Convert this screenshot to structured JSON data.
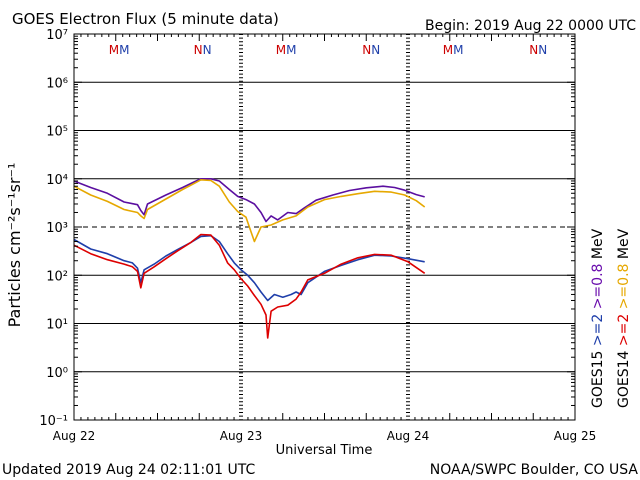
{
  "header": {
    "title": "GOES Electron Flux (5 minute data)",
    "begin": "Begin: 2019 Aug 22 0000 UTC"
  },
  "footer": {
    "updated": "Updated 2019 Aug 24 02:11:01 UTC",
    "credit": "NOAA/SWPC Boulder, CO USA"
  },
  "chart_data": {
    "type": "line",
    "title": "GOES Electron Flux (5 minute data)",
    "xlabel": "Universal Time",
    "ylabel": "Particles cm⁻²s⁻¹sr⁻¹",
    "yscale": "log",
    "ylim_exp": [
      -1,
      7
    ],
    "ytick_exps": [
      -1,
      0,
      1,
      2,
      3,
      4,
      5,
      6,
      7
    ],
    "x_unit": "days since 2019 Aug 22 0000 UTC",
    "xlim": [
      0,
      3
    ],
    "xticks": [
      {
        "x": 0,
        "label": "Aug 22"
      },
      {
        "x": 1,
        "label": "Aug 23"
      },
      {
        "x": 2,
        "label": "Aug 24"
      },
      {
        "x": 3,
        "label": "Aug 25"
      }
    ],
    "threshold": {
      "value": 1000,
      "style": "dashed"
    },
    "top_markers": [
      {
        "x": 0.27,
        "letters": [
          {
            "text": "M",
            "color": "#cc0000"
          },
          {
            "text": "M",
            "color": "#1f3faa"
          }
        ]
      },
      {
        "x": 0.77,
        "letters": [
          {
            "text": "N",
            "color": "#cc0000"
          },
          {
            "text": "N",
            "color": "#1f3faa"
          }
        ]
      },
      {
        "x": 1.27,
        "letters": [
          {
            "text": "M",
            "color": "#cc0000"
          },
          {
            "text": "M",
            "color": "#1f3faa"
          }
        ]
      },
      {
        "x": 1.78,
        "letters": [
          {
            "text": "N",
            "color": "#cc0000"
          },
          {
            "text": "N",
            "color": "#1f3faa"
          }
        ]
      },
      {
        "x": 2.27,
        "letters": [
          {
            "text": "M",
            "color": "#cc0000"
          },
          {
            "text": "M",
            "color": "#1f3faa"
          }
        ]
      },
      {
        "x": 2.78,
        "letters": [
          {
            "text": "N",
            "color": "#cc0000"
          },
          {
            "text": "N",
            "color": "#1f3faa"
          }
        ]
      }
    ],
    "legend": {
      "placement": "right",
      "columns": [
        {
          "satellite": "GOES15",
          "entries": [
            {
              "text": ">=2",
              "color": "#1f3faa"
            },
            {
              "text": ">=0.8",
              "color": "#6a0dad"
            }
          ],
          "unit": "MeV"
        },
        {
          "satellite": "GOES14",
          "entries": [
            {
              "text": ">=2",
              "color": "#dd0000"
            },
            {
              "text": ">=0.8",
              "color": "#e6a800"
            }
          ],
          "unit": "MeV"
        }
      ]
    },
    "series": [
      {
        "name": "GOES15 >=0.8 MeV",
        "color": "#5b0fa0",
        "points": [
          [
            0,
            9000
          ],
          [
            0.1,
            6600
          ],
          [
            0.2,
            5000
          ],
          [
            0.3,
            3300
          ],
          [
            0.38,
            2900
          ],
          [
            0.4,
            2200
          ],
          [
            0.42,
            1800
          ],
          [
            0.44,
            3000
          ],
          [
            0.55,
            4600
          ],
          [
            0.65,
            6600
          ],
          [
            0.72,
            8600
          ],
          [
            0.76,
            10000
          ],
          [
            0.82,
            10000
          ],
          [
            0.87,
            9000
          ],
          [
            0.93,
            6000
          ],
          [
            0.98,
            4300
          ],
          [
            1.03,
            3700
          ],
          [
            1.08,
            3000
          ],
          [
            1.12,
            2000
          ],
          [
            1.15,
            1300
          ],
          [
            1.18,
            1700
          ],
          [
            1.22,
            1400
          ],
          [
            1.28,
            2000
          ],
          [
            1.33,
            1900
          ],
          [
            1.38,
            2500
          ],
          [
            1.45,
            3600
          ],
          [
            1.55,
            4600
          ],
          [
            1.65,
            5700
          ],
          [
            1.75,
            6500
          ],
          [
            1.85,
            7000
          ],
          [
            1.92,
            6600
          ],
          [
            1.98,
            5800
          ],
          [
            2.05,
            4700
          ],
          [
            2.1,
            4200
          ]
        ]
      },
      {
        "name": "GOES14 >=0.8 MeV",
        "color": "#e6a800",
        "points": [
          [
            0,
            7000
          ],
          [
            0.1,
            4600
          ],
          [
            0.2,
            3400
          ],
          [
            0.3,
            2300
          ],
          [
            0.38,
            2000
          ],
          [
            0.4,
            1700
          ],
          [
            0.42,
            1500
          ],
          [
            0.44,
            2300
          ],
          [
            0.55,
            3800
          ],
          [
            0.65,
            6000
          ],
          [
            0.72,
            8000
          ],
          [
            0.76,
            9500
          ],
          [
            0.82,
            9200
          ],
          [
            0.87,
            7000
          ],
          [
            0.93,
            3300
          ],
          [
            0.98,
            2100
          ],
          [
            1.03,
            1600
          ],
          [
            1.06,
            800
          ],
          [
            1.08,
            500
          ],
          [
            1.12,
            1000
          ],
          [
            1.18,
            1100
          ],
          [
            1.25,
            1400
          ],
          [
            1.33,
            1700
          ],
          [
            1.4,
            2600
          ],
          [
            1.5,
            3700
          ],
          [
            1.6,
            4300
          ],
          [
            1.7,
            4900
          ],
          [
            1.8,
            5500
          ],
          [
            1.9,
            5300
          ],
          [
            1.98,
            4600
          ],
          [
            2.05,
            3500
          ],
          [
            2.1,
            2600
          ]
        ]
      },
      {
        "name": "GOES15 >=2 MeV",
        "color": "#1f3faa",
        "points": [
          [
            0,
            550
          ],
          [
            0.1,
            350
          ],
          [
            0.2,
            280
          ],
          [
            0.3,
            200
          ],
          [
            0.35,
            180
          ],
          [
            0.38,
            140
          ],
          [
            0.4,
            70
          ],
          [
            0.42,
            130
          ],
          [
            0.48,
            170
          ],
          [
            0.55,
            250
          ],
          [
            0.62,
            340
          ],
          [
            0.7,
            480
          ],
          [
            0.76,
            640
          ],
          [
            0.82,
            660
          ],
          [
            0.87,
            500
          ],
          [
            0.92,
            280
          ],
          [
            0.96,
            180
          ],
          [
            1.0,
            130
          ],
          [
            1.04,
            100
          ],
          [
            1.08,
            70
          ],
          [
            1.12,
            45
          ],
          [
            1.16,
            30
          ],
          [
            1.2,
            40
          ],
          [
            1.25,
            35
          ],
          [
            1.3,
            40
          ],
          [
            1.33,
            45
          ],
          [
            1.36,
            40
          ],
          [
            1.4,
            70
          ],
          [
            1.5,
            120
          ],
          [
            1.6,
            160
          ],
          [
            1.7,
            210
          ],
          [
            1.8,
            260
          ],
          [
            1.9,
            250
          ],
          [
            2.0,
            220
          ],
          [
            2.1,
            190
          ]
        ]
      },
      {
        "name": "GOES14 >=2 MeV",
        "color": "#dd0000",
        "points": [
          [
            0,
            420
          ],
          [
            0.1,
            280
          ],
          [
            0.2,
            210
          ],
          [
            0.3,
            170
          ],
          [
            0.35,
            150
          ],
          [
            0.38,
            120
          ],
          [
            0.4,
            55
          ],
          [
            0.42,
            110
          ],
          [
            0.48,
            150
          ],
          [
            0.55,
            220
          ],
          [
            0.62,
            320
          ],
          [
            0.7,
            480
          ],
          [
            0.76,
            700
          ],
          [
            0.82,
            680
          ],
          [
            0.87,
            420
          ],
          [
            0.92,
            180
          ],
          [
            0.96,
            130
          ],
          [
            1.0,
            85
          ],
          [
            1.04,
            60
          ],
          [
            1.08,
            38
          ],
          [
            1.12,
            25
          ],
          [
            1.15,
            15
          ],
          [
            1.16,
            5
          ],
          [
            1.18,
            18
          ],
          [
            1.22,
            22
          ],
          [
            1.28,
            24
          ],
          [
            1.33,
            32
          ],
          [
            1.36,
            45
          ],
          [
            1.4,
            80
          ],
          [
            1.5,
            110
          ],
          [
            1.6,
            170
          ],
          [
            1.7,
            230
          ],
          [
            1.8,
            270
          ],
          [
            1.9,
            260
          ],
          [
            2.0,
            190
          ],
          [
            2.1,
            110
          ]
        ]
      }
    ]
  }
}
